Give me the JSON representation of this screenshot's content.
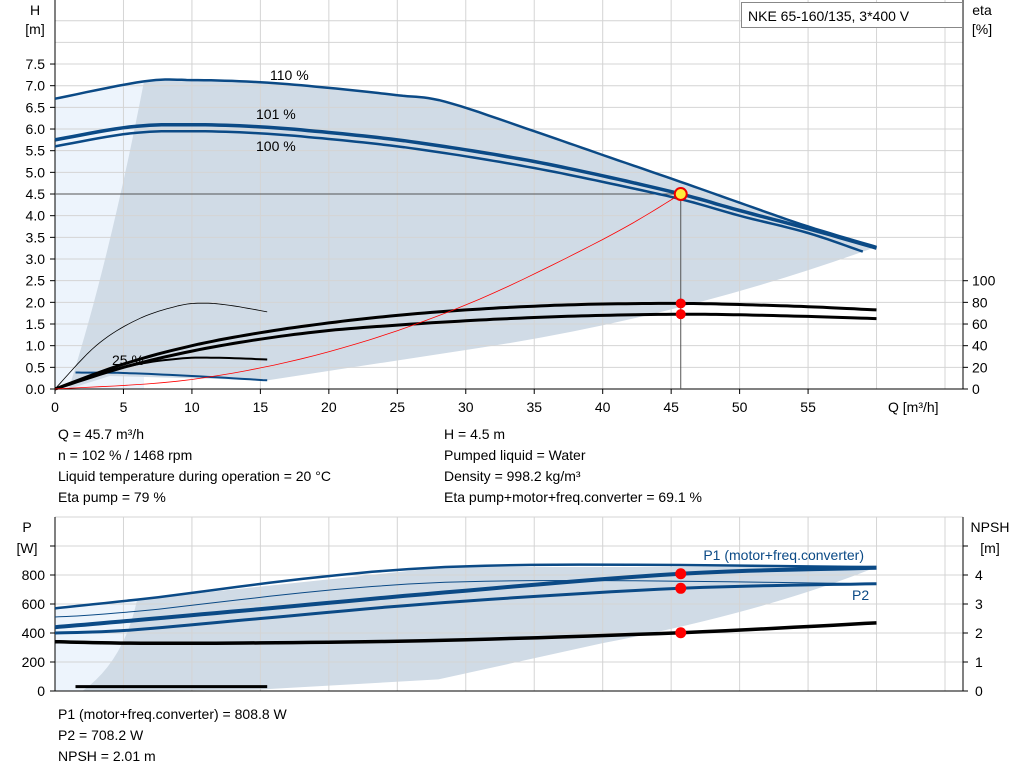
{
  "title": "NKE 65-160/135, 3*400 V",
  "info_top": {
    "q": "Q = 45.7 m³/h",
    "n": "n = 102 % / 1468 rpm",
    "temp": "Liquid temperature during operation = 20 °C",
    "eta_pump": "Eta pump = 79 %",
    "h": "H = 4.5 m",
    "liquid": "Pumped liquid = Water",
    "density": "Density = 998.2 kg/m³",
    "eta_total": "Eta pump+motor+freq.converter = 69.1 %"
  },
  "info_bottom": {
    "p1": "P1 (motor+freq.converter) = 808.8 W",
    "p2": "P2 = 708.2 W",
    "npsh": "NPSH = 2.01 m"
  },
  "colors": {
    "curve": "#0b4a86",
    "area": "#d0dbe6",
    "area_light": "#edf4fc",
    "grid": "#d4d4d4",
    "duty": "#ff0000",
    "system": "#ff0000"
  },
  "chart_data": [
    {
      "type": "line",
      "xlabel": "Q [m³/h]",
      "ylabel": "H\n[m]",
      "y2label": "eta\n[%]",
      "xlim": [
        0,
        65
      ],
      "ylim": [
        0,
        9
      ],
      "y2lim": [
        0,
        207.7
      ],
      "grid": true,
      "xticks": [
        0,
        5,
        10,
        15,
        20,
        25,
        30,
        35,
        40,
        45,
        50,
        55
      ],
      "yticks": [
        "0.0",
        "0.5",
        "1.0",
        "1.5",
        "2.0",
        "2.5",
        "3.0",
        "3.5",
        "4.0",
        "4.5",
        "5.0",
        "5.5",
        "6.0",
        "6.5",
        "7.0",
        "7.5"
      ],
      "y2ticks": [
        0,
        20,
        40,
        60,
        80,
        100
      ],
      "labels": {
        "s110": "110 %",
        "s101": "101 %",
        "s100": "100 %",
        "s25": "25 %"
      },
      "series": [
        {
          "name": "110 %",
          "axis": "H",
          "points": [
            [
              0,
              6.7
            ],
            [
              6.5,
              7.1
            ],
            [
              10,
              7.13
            ],
            [
              15,
              7.08
            ],
            [
              20,
              6.95
            ],
            [
              25,
              6.78
            ],
            [
              28.5,
              6.63
            ],
            [
              35,
              5.95
            ],
            [
              40,
              5.4
            ],
            [
              45.7,
              4.78
            ],
            [
              50,
              4.3
            ],
            [
              55,
              3.75
            ],
            [
              60,
              3.28
            ]
          ]
        },
        {
          "name": "101 %",
          "axis": "H",
          "points": [
            [
              0,
              5.75
            ],
            [
              5.5,
              6.05
            ],
            [
              10,
              6.1
            ],
            [
              15,
              6.05
            ],
            [
              20,
              5.92
            ],
            [
              25,
              5.75
            ],
            [
              30,
              5.52
            ],
            [
              35,
              5.25
            ],
            [
              40,
              4.92
            ],
            [
              45.7,
              4.5
            ],
            [
              50,
              4.12
            ],
            [
              55,
              3.7
            ],
            [
              60,
              3.25
            ]
          ]
        },
        {
          "name": "100 %",
          "axis": "H",
          "points": [
            [
              0,
              5.6
            ],
            [
              5.5,
              5.9
            ],
            [
              10,
              5.95
            ],
            [
              15,
              5.9
            ],
            [
              20,
              5.77
            ],
            [
              25,
              5.6
            ],
            [
              30,
              5.37
            ],
            [
              35,
              5.1
            ],
            [
              40,
              4.78
            ],
            [
              45.7,
              4.38
            ],
            [
              50,
              4.0
            ],
            [
              55,
              3.6
            ],
            [
              59,
              3.17
            ]
          ]
        },
        {
          "name": "25 %",
          "axis": "H",
          "points": [
            [
              1.5,
              0.38
            ],
            [
              5,
              0.37
            ],
            [
              10,
              0.3
            ],
            [
              15.5,
              0.2
            ]
          ]
        },
        {
          "axis": "eta",
          "points": [
            [
              0,
              0
            ],
            [
              5,
              23
            ],
            [
              10,
              40
            ],
            [
              15,
              52
            ],
            [
              20,
              61
            ],
            [
              25,
              68
            ],
            [
              30,
              73
            ],
            [
              35,
              76.5
            ],
            [
              40,
              78.5
            ],
            [
              45.7,
              79
            ],
            [
              50,
              78
            ],
            [
              55,
              76
            ],
            [
              60,
              73
            ]
          ]
        },
        {
          "axis": "eta",
          "points": [
            [
              0,
              0
            ],
            [
              5,
              20
            ],
            [
              10,
              35
            ],
            [
              15,
              46
            ],
            [
              20,
              54
            ],
            [
              25,
              59
            ],
            [
              30,
              63
            ],
            [
              35,
              66
            ],
            [
              40,
              68
            ],
            [
              45.7,
              69
            ],
            [
              50,
              68.5
            ],
            [
              55,
              67
            ],
            [
              60,
              65
            ]
          ]
        },
        {
          "axis": "H",
          "points": [
            [
              0,
              0
            ],
            [
              3,
              1.0
            ],
            [
              6,
              1.6
            ],
            [
              9,
              1.92
            ],
            [
              11,
              1.98
            ],
            [
              13,
              1.92
            ],
            [
              15.5,
              1.78
            ]
          ]
        },
        {
          "axis": "H",
          "points": [
            [
              0,
              0
            ],
            [
              5,
              0.5
            ],
            [
              9,
              0.7
            ],
            [
              12,
              0.72
            ],
            [
              15.5,
              0.68
            ]
          ]
        },
        {
          "name": "system",
          "axis": "H",
          "points": [
            [
              0,
              0
            ],
            [
              10,
              0.22
            ],
            [
              20,
              0.86
            ],
            [
              30,
              1.94
            ],
            [
              40,
              3.45
            ],
            [
              45.7,
              4.5
            ]
          ]
        }
      ],
      "duty_point": {
        "q": 45.7,
        "h": 4.5,
        "eta_pump": 79,
        "eta_total": 69.1
      }
    },
    {
      "type": "line",
      "ylabel": "P\n[W]",
      "y2label": "NPSH\n[m]",
      "xlim": [
        0,
        65
      ],
      "ylim": [
        0,
        1200
      ],
      "y2lim": [
        0,
        6
      ],
      "grid": true,
      "yticks": [
        0,
        200,
        400,
        600,
        800
      ],
      "y2ticks": [
        0,
        1,
        2,
        3,
        4
      ],
      "labels": {
        "p1": "P1 (motor+freq.converter)",
        "p2": "P2"
      },
      "series": [
        {
          "axis": "P",
          "points": [
            [
              0,
              570
            ],
            [
              6,
              630
            ],
            [
              28.5,
              855
            ],
            [
              60,
              855
            ]
          ]
        },
        {
          "name": "P1 (motor+freq.converter)",
          "axis": "P",
          "points": [
            [
              0,
              440
            ],
            [
              5.5,
              485
            ],
            [
              15,
              565
            ],
            [
              28.5,
              680
            ],
            [
              45.7,
              808.8
            ],
            [
              60,
              850
            ]
          ]
        },
        {
          "name": "P2",
          "axis": "P",
          "points": [
            [
              0,
              400
            ],
            [
              5.5,
              420
            ],
            [
              15,
              500
            ],
            [
              28.5,
              610
            ],
            [
              45.7,
              708.2
            ],
            [
              60,
              740
            ]
          ]
        },
        {
          "axis": "P",
          "points": [
            [
              0,
              510
            ],
            [
              6,
              550
            ],
            [
              28.5,
              750
            ],
            [
              60,
              740
            ]
          ]
        },
        {
          "name": "NPSH",
          "axis": "NPSH",
          "points": [
            [
              0,
              1.7
            ],
            [
              5.5,
              1.65
            ],
            [
              15,
              1.66
            ],
            [
              28.5,
              1.75
            ],
            [
              45.7,
              2.01
            ],
            [
              60,
              2.35
            ]
          ]
        },
        {
          "axis": "P",
          "points": [
            [
              1.5,
              30
            ],
            [
              15.5,
              30
            ]
          ]
        }
      ],
      "duty_point": {
        "q": 45.7,
        "p1": 808.8,
        "p2": 708.2,
        "npsh": 2.01
      }
    }
  ]
}
